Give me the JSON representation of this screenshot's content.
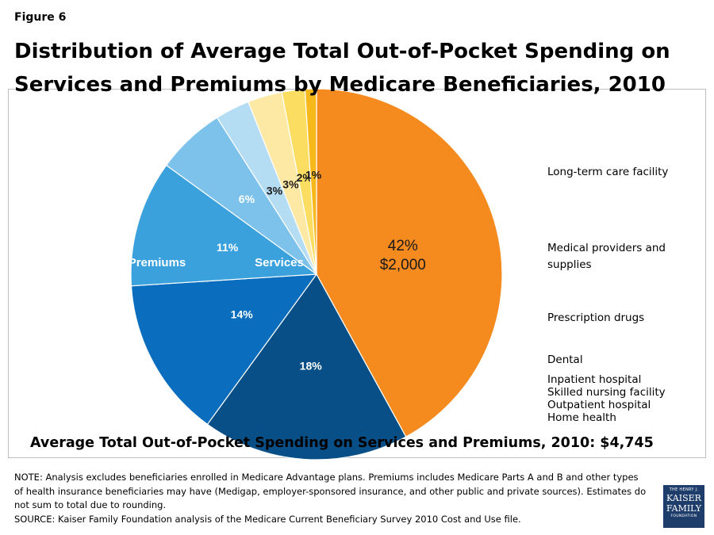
{
  "figure_label": "Figure 6",
  "title": "Distribution of Average Total Out-of-Pocket Spending on Services and Premiums by Medicare Beneficiaries, 2010",
  "total_line": "Average Total Out-of-Pocket Spending on Services and Premiums, 2010:  $4,745",
  "note": "NOTE: Analysis excludes beneficiaries enrolled in Medicare Advantage plans. Premiums includes Medicare Parts A and B and other types of health insurance beneficiaries may have (Medigap, employer-sponsored insurance, and other public and private sources). Estimates do not sum to total due to rounding.",
  "source": "SOURCE: Kaiser Family Foundation analysis of the Medicare Current Beneficiary Survey 2010 Cost and Use file.",
  "logo": {
    "line1": "THE HENRY J.",
    "line2": "KAISER",
    "line3": "FAMILY",
    "line4": "FOUNDATION"
  },
  "legend": {
    "long_term_care": "Long-term care facility",
    "medical_providers_l1": "Medical providers and",
    "medical_providers_l2": "supplies",
    "prescription_drugs": "Prescription drugs",
    "dental": "Dental",
    "inpatient": "Inpatient hospital",
    "snf": "Skilled nursing facility",
    "outpatient": "Outpatient hospital",
    "home_health": "Home health"
  },
  "chart_data": {
    "type": "pie",
    "title": "Distribution of Average Total Out-of-Pocket Spending on Services and Premiums by Medicare Beneficiaries, 2010",
    "total": 4745,
    "group_labels": [
      "Premiums",
      "Services"
    ],
    "slices": [
      {
        "percent": 42,
        "label": "42%",
        "amount_label": "$2,000",
        "color": "#f58a1f"
      },
      {
        "percent": 18,
        "label": "18%",
        "color": "#074f86"
      },
      {
        "percent": 14,
        "label": "14%",
        "color": "#0a6dbd"
      },
      {
        "percent": 11,
        "label": "11%",
        "color": "#3aa1dc"
      },
      {
        "percent": 6,
        "label": "6%",
        "color": "#7cc2ea"
      },
      {
        "percent": 3,
        "label": "3%",
        "color": "#b4dcf3"
      },
      {
        "percent": 3,
        "label": "3%",
        "color": "#fde8a4"
      },
      {
        "percent": 2,
        "label": "2%",
        "color": "#fbdd62"
      },
      {
        "percent": 1,
        "label": "1%",
        "color": "#f7b81c"
      }
    ]
  }
}
